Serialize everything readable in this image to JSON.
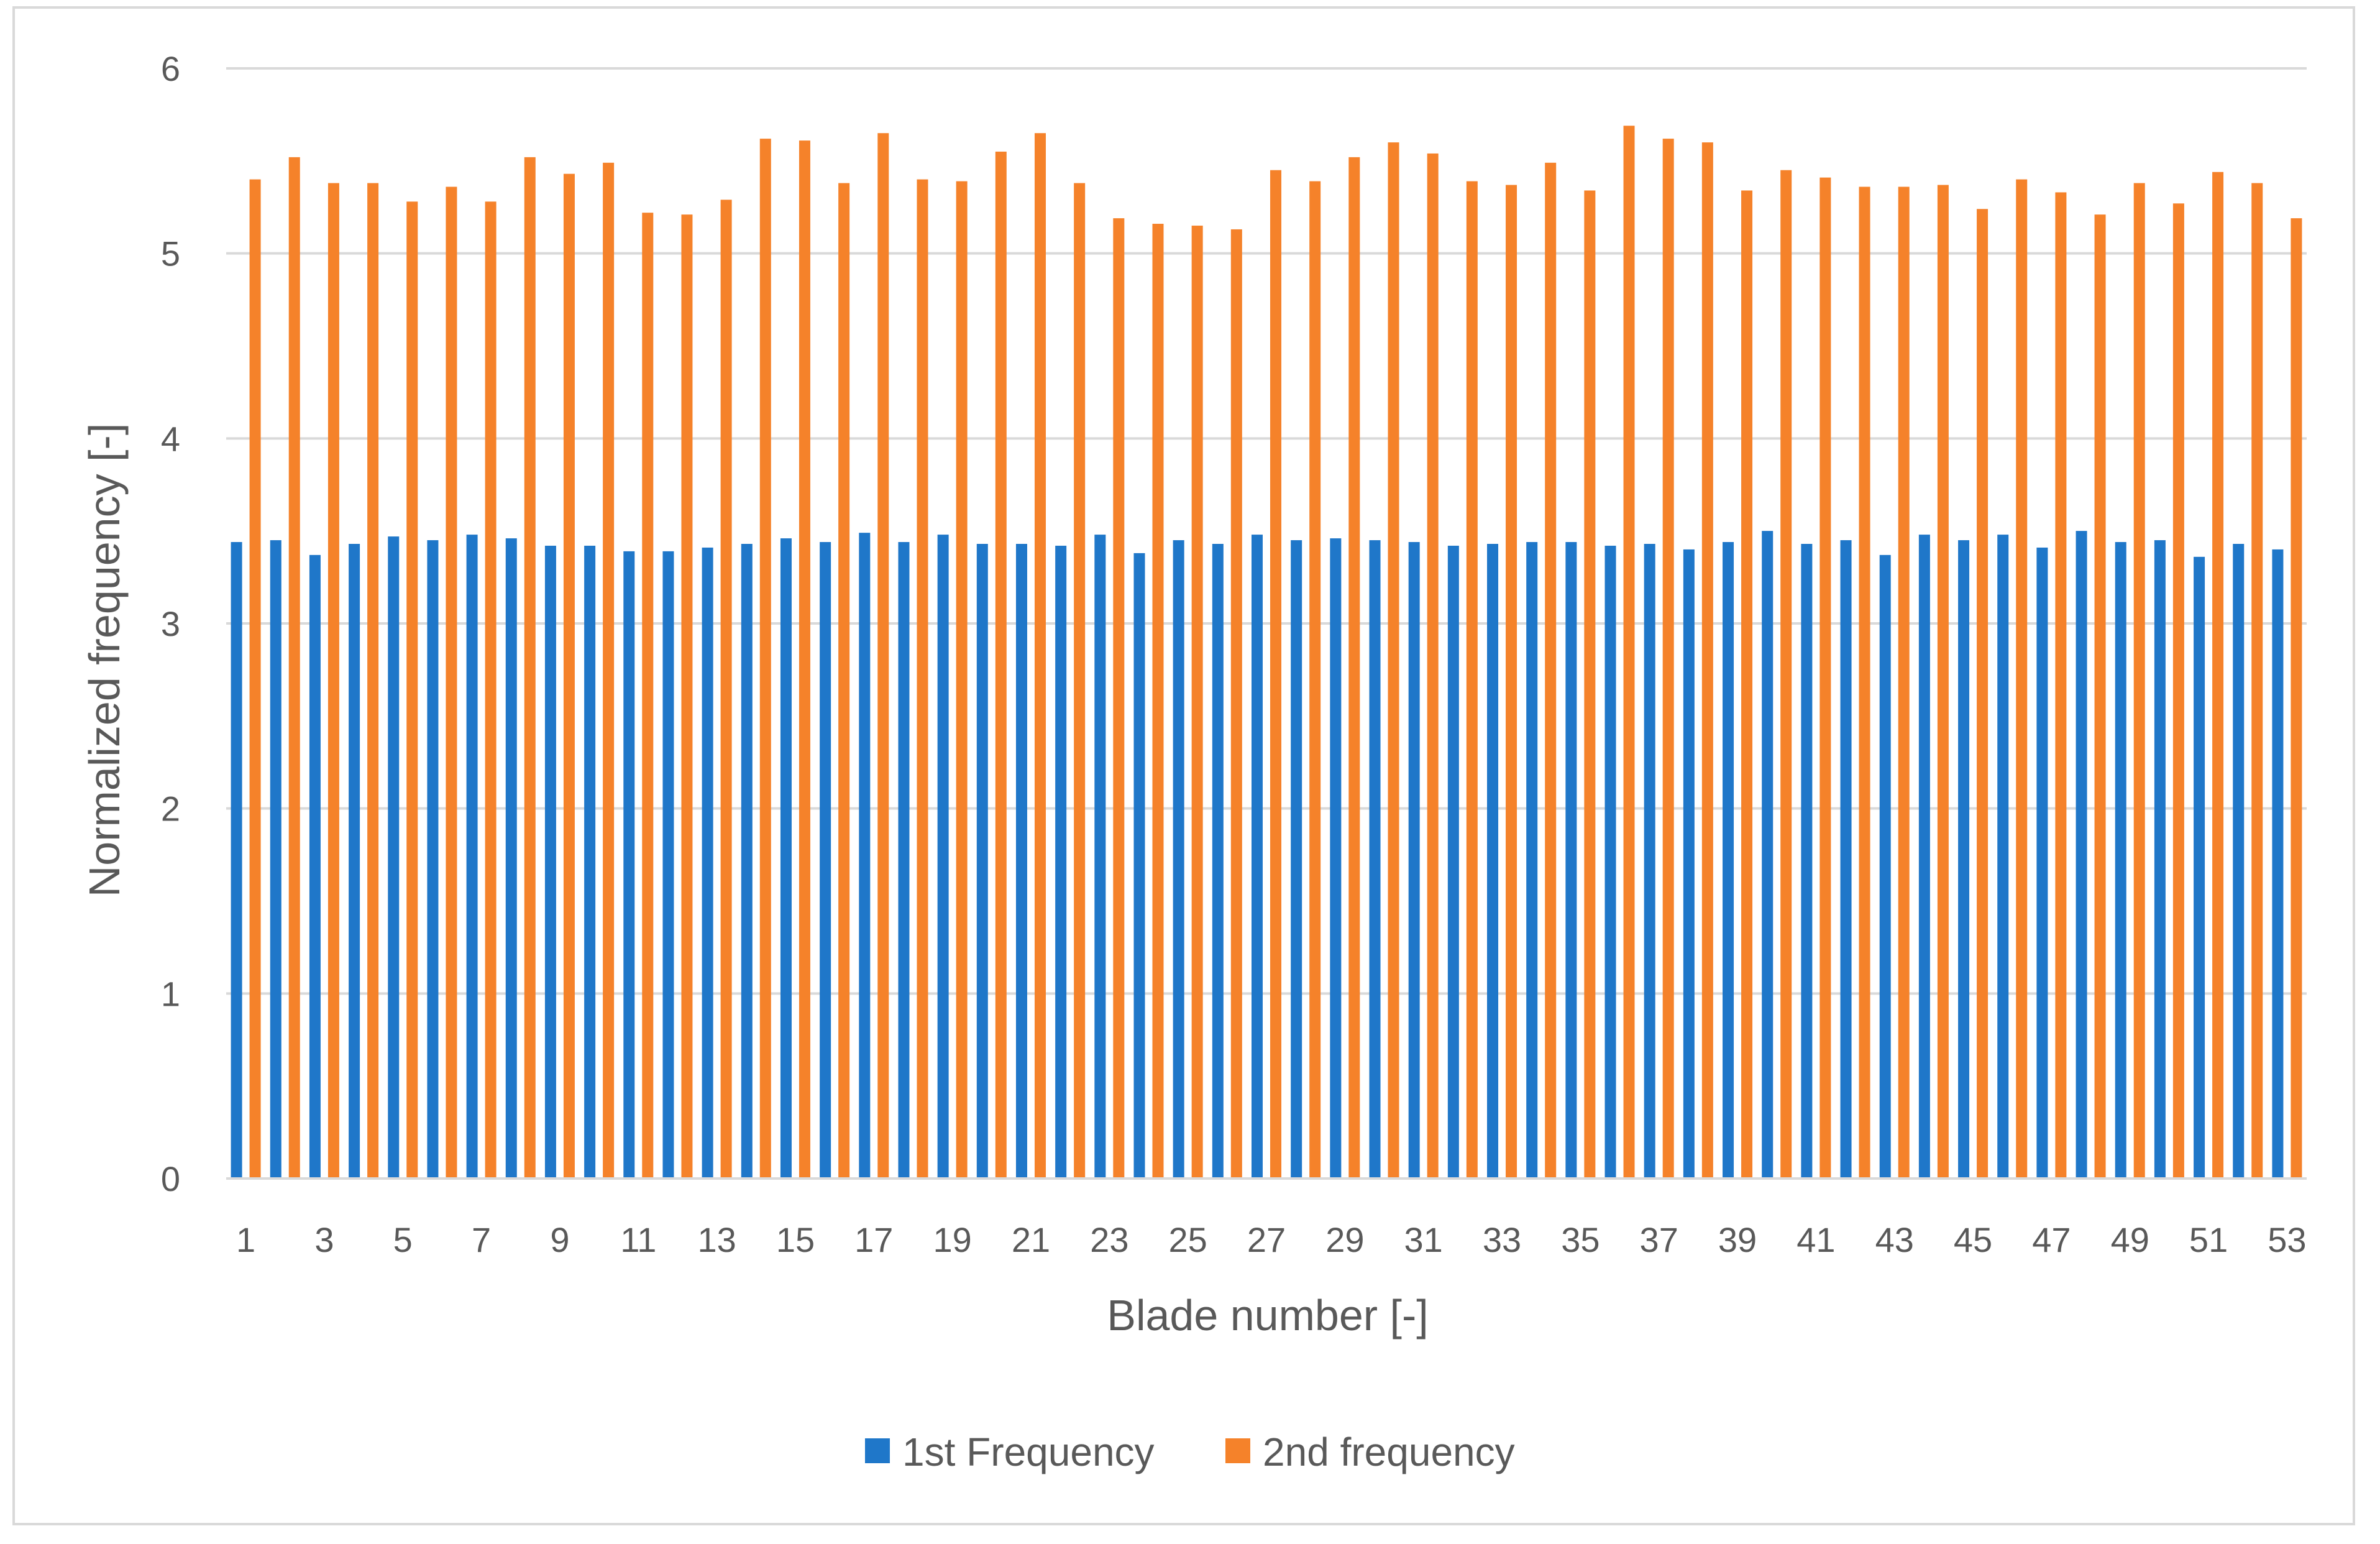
{
  "chart_data": {
    "type": "bar",
    "title": "",
    "xlabel": "Blade number [-]",
    "ylabel": "Normalized frequency [-]",
    "ylim": [
      0,
      6
    ],
    "yticks": [
      0,
      1,
      2,
      3,
      4,
      5,
      6
    ],
    "grid": true,
    "legend_position": "bottom",
    "categories": [
      "1",
      "2",
      "3",
      "4",
      "5",
      "6",
      "7",
      "8",
      "9",
      "10",
      "11",
      "12",
      "13",
      "14",
      "15",
      "16",
      "17",
      "18",
      "19",
      "20",
      "21",
      "22",
      "23",
      "24",
      "25",
      "26",
      "27",
      "28",
      "29",
      "30",
      "31",
      "32",
      "33",
      "34",
      "35",
      "36",
      "37",
      "38",
      "39",
      "40",
      "41",
      "42",
      "43",
      "44",
      "45",
      "46",
      "47",
      "48",
      "49",
      "50",
      "51",
      "52",
      "53"
    ],
    "xtick_labels": [
      "1",
      "3",
      "5",
      "7",
      "9",
      "11",
      "13",
      "15",
      "17",
      "19",
      "21",
      "23",
      "25",
      "27",
      "29",
      "31",
      "33",
      "35",
      "37",
      "39",
      "41",
      "43",
      "45",
      "47",
      "49",
      "51",
      "53"
    ],
    "series": [
      {
        "name": "1st Frequency",
        "color": "#1f77c9",
        "values": [
          3.44,
          3.45,
          3.37,
          3.43,
          3.47,
          3.45,
          3.48,
          3.46,
          3.42,
          3.42,
          3.39,
          3.39,
          3.41,
          3.43,
          3.46,
          3.44,
          3.49,
          3.44,
          3.48,
          3.43,
          3.43,
          3.42,
          3.48,
          3.38,
          3.45,
          3.43,
          3.48,
          3.45,
          3.46,
          3.45,
          3.44,
          3.42,
          3.43,
          3.44,
          3.44,
          3.42,
          3.43,
          3.4,
          3.44,
          3.5,
          3.43,
          3.45,
          3.37,
          3.48,
          3.45,
          3.48,
          3.41,
          3.5,
          3.44,
          3.45,
          3.36,
          3.43,
          3.4
        ]
      },
      {
        "name": "2nd frequency",
        "color": "#f5822a",
        "values": [
          5.4,
          5.52,
          5.38,
          5.38,
          5.28,
          5.36,
          5.28,
          5.52,
          5.43,
          5.49,
          5.22,
          5.21,
          5.29,
          5.62,
          5.61,
          5.38,
          5.65,
          5.4,
          5.39,
          5.55,
          5.65,
          5.38,
          5.19,
          5.16,
          5.15,
          5.13,
          5.45,
          5.39,
          5.52,
          5.6,
          5.54,
          5.39,
          5.37,
          5.49,
          5.34,
          5.69,
          5.62,
          5.6,
          5.34,
          5.45,
          5.41,
          5.36,
          5.36,
          5.37,
          5.24,
          5.4,
          5.33,
          5.21,
          5.38,
          5.27,
          5.44,
          5.38,
          5.19
        ]
      }
    ]
  }
}
